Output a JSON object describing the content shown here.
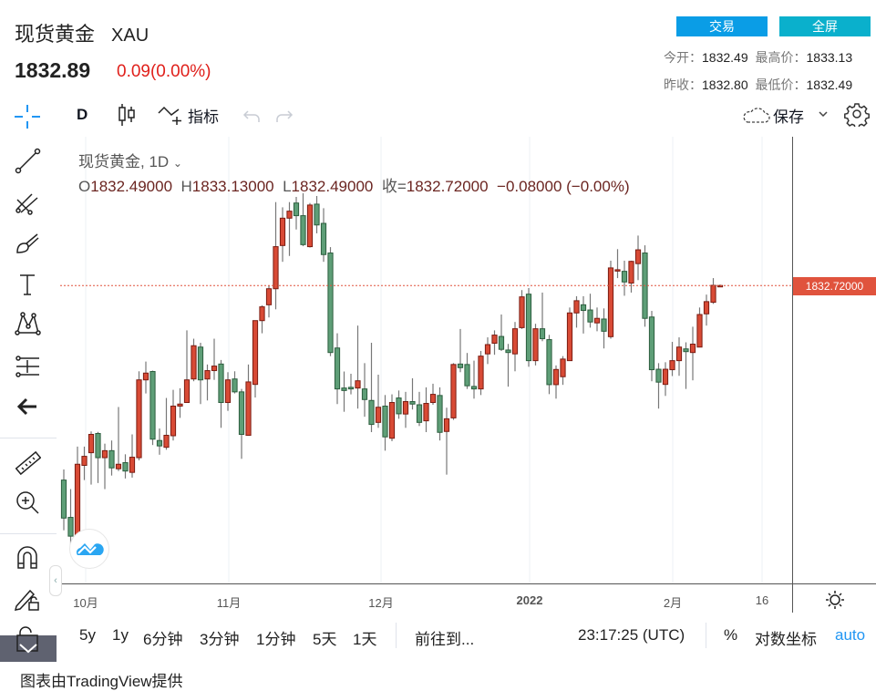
{
  "header": {
    "name": "现货黄金",
    "symbol": "XAU",
    "price": "1832.89",
    "change": "0.09(0.00%)"
  },
  "buttons": {
    "trade": "交易",
    "fullscreen": "全屏"
  },
  "stats": {
    "open_label": "今开：",
    "open": "1832.49",
    "high_label": "最高价：",
    "high": "1833.13",
    "prev_close_label": "昨收：",
    "prev_close": "1832.80",
    "low_label": "最低价：",
    "low": "1832.49"
  },
  "toolbar": {
    "interval": "D",
    "indicators": "指标",
    "save": "保存"
  },
  "legend": {
    "title": "现货黄金, 1D",
    "o_label": "O",
    "o": "1832.49000",
    "h_label": "H",
    "h": "1833.13000",
    "l_label": "L",
    "l": "1832.49000",
    "c_label": "收=",
    "c": "1832.72000",
    "change": "−0.08000 (−0.00%)"
  },
  "bottom_bar": {
    "ranges": [
      "5y",
      "1y",
      "6分钟",
      "3分钟",
      "1分钟",
      "5天",
      "1天"
    ],
    "goto": "前往到...",
    "time": "23:17:25 (UTC)",
    "percent": "%",
    "log": "对数坐标",
    "auto": "auto"
  },
  "footer": "图表由TradingView提供",
  "colors": {
    "up": "#d84a35",
    "down": "#5e9e77",
    "price_line": "#e0533d",
    "accent": "#2196f3"
  },
  "chart_data": {
    "type": "candlestick",
    "title": "现货黄金, 1D",
    "x_ticks": [
      "10月",
      "11月",
      "12月",
      "2022",
      "2月",
      "16"
    ],
    "ylim": [
      1701.0,
      1898.5
    ],
    "last_price_label": "1832.72000",
    "candles_ohlc": [
      [
        1746.7,
        1751.4,
        1724.5,
        1729.9
      ],
      [
        1730.2,
        1742.7,
        1717.8,
        1721.9
      ],
      [
        1721.9,
        1761.5,
        1720.5,
        1753.7
      ],
      [
        1753.2,
        1761.5,
        1746.7,
        1757.2
      ],
      [
        1758.8,
        1768.2,
        1744.7,
        1766.9
      ],
      [
        1767.3,
        1768.0,
        1745.4,
        1756.6
      ],
      [
        1756.6,
        1762.8,
        1742.7,
        1759.7
      ],
      [
        1759.7,
        1764.2,
        1748.7,
        1752.1
      ],
      [
        1751.7,
        1779.0,
        1750.7,
        1753.7
      ],
      [
        1754.4,
        1758.1,
        1747.4,
        1750.7
      ],
      [
        1750.1,
        1766.9,
        1747.8,
        1756.8
      ],
      [
        1756.6,
        1794.8,
        1755.4,
        1791.0
      ],
      [
        1791.0,
        1799.1,
        1785.0,
        1794.0
      ],
      [
        1794.7,
        1795.1,
        1762.2,
        1764.8
      ],
      [
        1764.2,
        1769.5,
        1757.9,
        1761.8
      ],
      [
        1761.2,
        1783.0,
        1760.1,
        1766.5
      ],
      [
        1766.3,
        1786.6,
        1764.2,
        1779.4
      ],
      [
        1779.4,
        1787.3,
        1774.2,
        1780.3
      ],
      [
        1781.0,
        1812.9,
        1781.0,
        1791.0
      ],
      [
        1791.4,
        1809.2,
        1790.4,
        1806.1
      ],
      [
        1805.5,
        1807.4,
        1780.3,
        1791.0
      ],
      [
        1791.4,
        1797.8,
        1781.9,
        1795.1
      ],
      [
        1795.1,
        1809.2,
        1791.0,
        1797.1
      ],
      [
        1798.0,
        1799.8,
        1769.8,
        1781.0
      ],
      [
        1781.0,
        1794.4,
        1777.3,
        1791.0
      ],
      [
        1791.4,
        1794.8,
        1785.0,
        1785.7
      ],
      [
        1785.7,
        1787.0,
        1756.1,
        1766.9
      ],
      [
        1766.5,
        1797.8,
        1766.5,
        1790.1
      ],
      [
        1789.0,
        1817.2,
        1783.2,
        1817.2
      ],
      [
        1817.2,
        1824.0,
        1811.6,
        1823.3
      ],
      [
        1824.2,
        1832.7,
        1818.6,
        1831.3
      ],
      [
        1831.3,
        1869.6,
        1822.2,
        1849.9
      ],
      [
        1850.4,
        1867.3,
        1843.2,
        1862.5
      ],
      [
        1862.5,
        1869.6,
        1845.8,
        1865.6
      ],
      [
        1869.2,
        1871.9,
        1857.5,
        1863.6
      ],
      [
        1863.6,
        1873.5,
        1850.1,
        1850.8
      ],
      [
        1849.9,
        1869.2,
        1849.5,
        1868.3
      ],
      [
        1868.7,
        1872.3,
        1855.8,
        1859.5
      ],
      [
        1860.2,
        1866.9,
        1843.2,
        1846.4
      ],
      [
        1847.1,
        1849.7,
        1801.5,
        1803.1
      ],
      [
        1805.1,
        1811.6,
        1780.3,
        1787.0
      ],
      [
        1787.4,
        1794.7,
        1776.9,
        1786.3
      ],
      [
        1787.7,
        1793.7,
        1784.6,
        1787.0
      ],
      [
        1787.4,
        1815.0,
        1778.3,
        1790.6
      ],
      [
        1787.0,
        1798.4,
        1774.7,
        1782.3
      ],
      [
        1781.9,
        1807.4,
        1767.9,
        1771.3
      ],
      [
        1772.2,
        1793.3,
        1769.8,
        1778.9
      ],
      [
        1779.4,
        1784.3,
        1759.7,
        1765.8
      ],
      [
        1765.2,
        1784.6,
        1763.9,
        1781.0
      ],
      [
        1783.0,
        1786.3,
        1773.8,
        1776.0
      ],
      [
        1775.9,
        1785.7,
        1769.8,
        1781.4
      ],
      [
        1781.4,
        1791.7,
        1777.9,
        1780.3
      ],
      [
        1780.0,
        1785.7,
        1770.6,
        1772.2
      ],
      [
        1772.9,
        1787.7,
        1767.9,
        1780.6
      ],
      [
        1781.0,
        1789.3,
        1780.0,
        1784.6
      ],
      [
        1784.1,
        1787.7,
        1764.2,
        1767.8
      ],
      [
        1768.2,
        1778.7,
        1749.1,
        1773.8
      ],
      [
        1774.2,
        1798.4,
        1773.3,
        1797.8
      ],
      [
        1798.0,
        1813.5,
        1794.4,
        1796.4
      ],
      [
        1797.8,
        1802.9,
        1787.0,
        1788.4
      ],
      [
        1788.1,
        1799.5,
        1782.7,
        1787.0
      ],
      [
        1787.0,
        1803.8,
        1784.3,
        1801.5
      ],
      [
        1802.5,
        1809.8,
        1798.0,
        1806.6
      ],
      [
        1807.2,
        1812.9,
        1802.1,
        1810.8
      ],
      [
        1810.2,
        1819.9,
        1803.8,
        1804.5
      ],
      [
        1804.2,
        1806.9,
        1788.0,
        1803.1
      ],
      [
        1802.5,
        1816.6,
        1794.8,
        1813.6
      ],
      [
        1814.1,
        1830.7,
        1813.5,
        1827.7
      ],
      [
        1828.9,
        1831.6,
        1796.8,
        1799.5
      ],
      [
        1799.5,
        1815.8,
        1797.4,
        1813.6
      ],
      [
        1813.6,
        1829.6,
        1808.1,
        1809.2
      ],
      [
        1808.8,
        1810.9,
        1784.7,
        1788.9
      ],
      [
        1788.9,
        1797.4,
        1782.7,
        1795.6
      ],
      [
        1792.4,
        1801.5,
        1788.8,
        1800.2
      ],
      [
        1799.5,
        1823.0,
        1799.5,
        1820.6
      ],
      [
        1820.6,
        1828.0,
        1814.1,
        1826.0
      ],
      [
        1824.2,
        1828.0,
        1811.5,
        1821.7
      ],
      [
        1821.9,
        1829.1,
        1814.1,
        1816.6
      ],
      [
        1816.2,
        1823.0,
        1812.5,
        1818.2
      ],
      [
        1817.9,
        1822.6,
        1804.9,
        1812.5
      ],
      [
        1810.1,
        1843.7,
        1809.2,
        1840.5
      ],
      [
        1839.1,
        1848.8,
        1836.0,
        1839.7
      ],
      [
        1839.0,
        1843.7,
        1828.2,
        1834.3
      ],
      [
        1833.8,
        1843.7,
        1829.6,
        1843.4
      ],
      [
        1842.4,
        1854.8,
        1835.1,
        1848.5
      ],
      [
        1847.1,
        1850.5,
        1814.5,
        1818.2
      ],
      [
        1818.8,
        1821.5,
        1790.4,
        1795.5
      ],
      [
        1795.7,
        1798.4,
        1778.3,
        1790.0
      ],
      [
        1789.0,
        1798.8,
        1783.9,
        1795.7
      ],
      [
        1795.5,
        1807.8,
        1792.7,
        1799.5
      ],
      [
        1799.5,
        1809.8,
        1792.8,
        1805.5
      ],
      [
        1804.7,
        1807.6,
        1787.0,
        1803.5
      ],
      [
        1803.1,
        1814.5,
        1790.8,
        1806.8
      ],
      [
        1805.5,
        1823.0,
        1805.5,
        1819.9
      ],
      [
        1820.2,
        1828.7,
        1815.0,
        1825.6
      ],
      [
        1825.3,
        1836.0,
        1824.6,
        1832.8
      ],
      [
        1832.49,
        1833.13,
        1832.49,
        1832.72
      ]
    ]
  }
}
